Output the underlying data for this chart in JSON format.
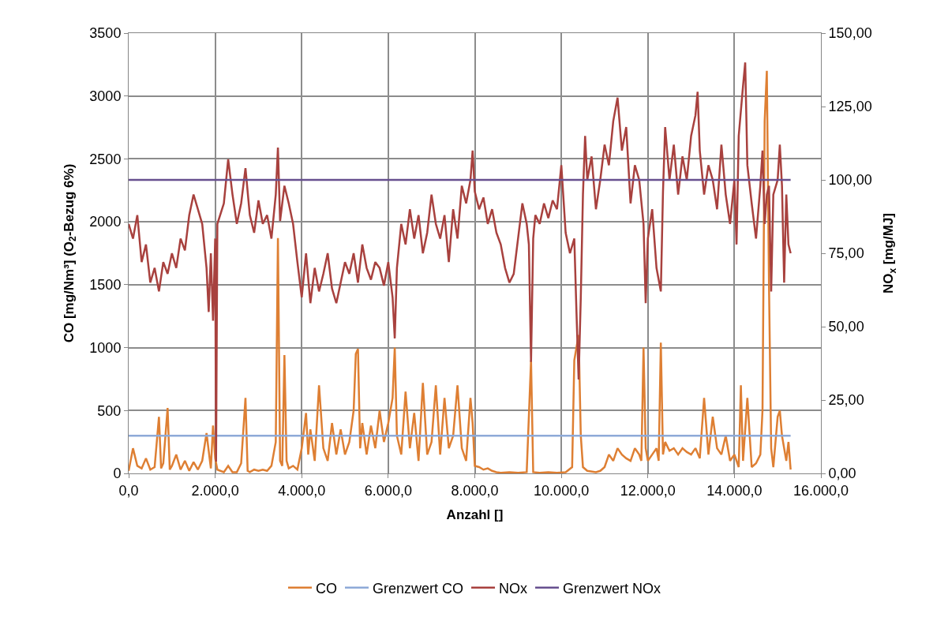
{
  "chart_data": {
    "type": "line",
    "xlabel": "Anzahl []",
    "ylabel": "CO [mg/Nm³] (O$_{2}$-Bezug 6%)",
    "y2label": "NO$_{x}$ [mg/MJ]",
    "xlim": [
      0,
      16000
    ],
    "xticks": [
      {
        "value": 0,
        "label": "0,0"
      },
      {
        "value": 2000,
        "label": "2.000,0"
      },
      {
        "value": 4000,
        "label": "4.000,0"
      },
      {
        "value": 6000,
        "label": "6.000,0"
      },
      {
        "value": 8000,
        "label": "8.000,0"
      },
      {
        "value": 10000,
        "label": "10.000,0"
      },
      {
        "value": 12000,
        "label": "12.000,0"
      },
      {
        "value": 14000,
        "label": "14.000,0"
      },
      {
        "value": 16000,
        "label": "16.000,0"
      }
    ],
    "ylim": [
      0,
      3500
    ],
    "yticks": [
      0,
      500,
      1000,
      1500,
      2000,
      2500,
      3000,
      3500
    ],
    "y2lim": [
      0,
      150
    ],
    "y2ticks": [
      {
        "value": 0,
        "label": "0,00"
      },
      {
        "value": 25,
        "label": "25,00"
      },
      {
        "value": 50,
        "label": "50,00"
      },
      {
        "value": 75,
        "label": "75,00"
      },
      {
        "value": 100,
        "label": "100,00"
      },
      {
        "value": 125,
        "label": "125,00"
      },
      {
        "value": 150,
        "label": "150,00"
      }
    ],
    "grid": true,
    "legend": "bottom",
    "marker": "none",
    "line_style": "solid",
    "series": [
      {
        "name": "CO",
        "color": "#de7f33",
        "x": [
          0,
          100,
          200,
          300,
          400,
          500,
          600,
          700,
          750,
          800,
          900,
          950,
          1000,
          1100,
          1200,
          1300,
          1400,
          1500,
          1600,
          1700,
          1800,
          1900,
          1950,
          2000,
          2050,
          2200,
          2300,
          2400,
          2500,
          2600,
          2700,
          2750,
          2800,
          2900,
          3000,
          3100,
          3200,
          3300,
          3400,
          3450,
          3500,
          3550,
          3600,
          3650,
          3700,
          3800,
          3900,
          4000,
          4100,
          4150,
          4200,
          4300,
          4400,
          4500,
          4600,
          4700,
          4800,
          4900,
          5000,
          5100,
          5200,
          5250,
          5300,
          5350,
          5400,
          5500,
          5600,
          5700,
          5800,
          5900,
          6000,
          6100,
          6150,
          6200,
          6300,
          6400,
          6500,
          6600,
          6700,
          6800,
          6900,
          7000,
          7100,
          7200,
          7300,
          7400,
          7500,
          7600,
          7700,
          7800,
          7900,
          7950,
          8000,
          8100,
          8200,
          8300,
          8400,
          8500,
          8600,
          8800,
          9000,
          9200,
          9300,
          9350,
          9500,
          9700,
          9900,
          10100,
          10250,
          10300,
          10350,
          10400,
          10450,
          10500,
          10600,
          10800,
          10900,
          11000,
          11100,
          11200,
          11300,
          11400,
          11500,
          11600,
          11700,
          11800,
          11850,
          11900,
          11950,
          12000,
          12100,
          12200,
          12250,
          12300,
          12350,
          12400,
          12500,
          12600,
          12700,
          12800,
          12900,
          13000,
          13100,
          13200,
          13300,
          13400,
          13500,
          13600,
          13700,
          13800,
          13900,
          14000,
          14100,
          14150,
          14200,
          14300,
          14400,
          14500,
          14600,
          14650,
          14700,
          14750,
          14800,
          14850,
          14900,
          15000,
          15050,
          15100,
          15150,
          15200,
          15250,
          15300
        ],
        "values": [
          20,
          200,
          60,
          40,
          120,
          30,
          50,
          450,
          40,
          80,
          520,
          30,
          60,
          150,
          30,
          100,
          20,
          90,
          30,
          100,
          320,
          40,
          380,
          120,
          30,
          10,
          60,
          10,
          10,
          80,
          600,
          20,
          10,
          30,
          20,
          30,
          20,
          60,
          250,
          1870,
          100,
          60,
          940,
          100,
          40,
          60,
          30,
          200,
          480,
          150,
          350,
          100,
          700,
          200,
          100,
          400,
          150,
          350,
          150,
          250,
          500,
          950,
          990,
          200,
          400,
          150,
          380,
          200,
          500,
          250,
          400,
          600,
          1000,
          300,
          150,
          650,
          200,
          480,
          100,
          720,
          150,
          250,
          700,
          150,
          600,
          200,
          300,
          700,
          200,
          100,
          600,
          400,
          60,
          50,
          30,
          40,
          20,
          10,
          5,
          10,
          5,
          10,
          900,
          10,
          5,
          10,
          5,
          10,
          50,
          900,
          1000,
          1100,
          300,
          50,
          20,
          10,
          20,
          50,
          150,
          100,
          200,
          150,
          120,
          100,
          200,
          150,
          100,
          1000,
          200,
          100,
          150,
          200,
          100,
          1040,
          150,
          250,
          180,
          200,
          150,
          200,
          170,
          150,
          200,
          120,
          600,
          150,
          450,
          200,
          150,
          300,
          100,
          150,
          50,
          700,
          100,
          600,
          50,
          80,
          150,
          500,
          2800,
          3200,
          1500,
          200,
          50,
          450,
          500,
          300,
          200,
          100,
          250,
          30
        ]
      },
      {
        "name": "Grenzwert CO",
        "color": "#8eaad8",
        "x": [
          0,
          15300
        ],
        "values": [
          300,
          300
        ]
      },
      {
        "name": "NOx",
        "color": "#a8413e",
        "axis": "y2",
        "x": [
          0,
          100,
          200,
          300,
          400,
          500,
          600,
          700,
          800,
          900,
          1000,
          1100,
          1200,
          1300,
          1400,
          1500,
          1600,
          1700,
          1800,
          1850,
          1900,
          1950,
          2000,
          2020,
          2050,
          2200,
          2300,
          2400,
          2500,
          2600,
          2700,
          2800,
          2900,
          3000,
          3100,
          3200,
          3300,
          3400,
          3450,
          3500,
          3600,
          3700,
          3800,
          3900,
          4000,
          4100,
          4200,
          4300,
          4400,
          4500,
          4600,
          4700,
          4800,
          4900,
          5000,
          5100,
          5200,
          5300,
          5400,
          5500,
          5600,
          5700,
          5800,
          5900,
          6000,
          6100,
          6150,
          6200,
          6300,
          6400,
          6500,
          6600,
          6700,
          6800,
          6900,
          7000,
          7100,
          7200,
          7300,
          7400,
          7500,
          7600,
          7700,
          7800,
          7900,
          7950,
          8000,
          8100,
          8200,
          8300,
          8400,
          8500,
          8600,
          8700,
          8800,
          8900,
          9000,
          9100,
          9200,
          9250,
          9300,
          9350,
          9400,
          9500,
          9600,
          9700,
          9800,
          9900,
          10000,
          10100,
          10200,
          10300,
          10350,
          10400,
          10450,
          10500,
          10550,
          10600,
          10700,
          10800,
          10900,
          11000,
          11100,
          11200,
          11300,
          11400,
          11500,
          11600,
          11700,
          11800,
          11900,
          11950,
          12000,
          12100,
          12200,
          12300,
          12350,
          12400,
          12500,
          12600,
          12700,
          12800,
          12900,
          13000,
          13100,
          13150,
          13200,
          13300,
          13400,
          13500,
          13600,
          13700,
          13800,
          13900,
          14000,
          14050,
          14100,
          14200,
          14250,
          14300,
          14400,
          14500,
          14600,
          14650,
          14700,
          14750,
          14800,
          14850,
          14900,
          15000,
          15050,
          15100,
          15150,
          15200,
          15250,
          15300
        ],
        "values": [
          85,
          80,
          88,
          72,
          78,
          65,
          70,
          62,
          72,
          68,
          75,
          70,
          80,
          76,
          88,
          95,
          90,
          85,
          70,
          55,
          75,
          52,
          80,
          4,
          85,
          92,
          107,
          95,
          85,
          92,
          104,
          88,
          82,
          93,
          85,
          88,
          80,
          95,
          111,
          86,
          98,
          92,
          85,
          72,
          60,
          75,
          58,
          70,
          62,
          68,
          75,
          63,
          58,
          65,
          72,
          68,
          75,
          65,
          78,
          70,
          66,
          72,
          70,
          64,
          72,
          60,
          46,
          70,
          85,
          78,
          90,
          80,
          88,
          75,
          82,
          95,
          85,
          80,
          88,
          72,
          90,
          80,
          98,
          92,
          100,
          110,
          96,
          90,
          94,
          85,
          90,
          82,
          78,
          70,
          65,
          68,
          80,
          92,
          85,
          78,
          38,
          80,
          88,
          85,
          92,
          87,
          93,
          90,
          105,
          82,
          75,
          80,
          55,
          32,
          60,
          95,
          115,
          100,
          108,
          90,
          100,
          112,
          105,
          120,
          128,
          110,
          118,
          92,
          105,
          100,
          85,
          58,
          80,
          90,
          70,
          62,
          96,
          118,
          100,
          112,
          95,
          108,
          100,
          115,
          122,
          130,
          110,
          95,
          105,
          100,
          90,
          112,
          95,
          85,
          100,
          78,
          115,
          132,
          140,
          105,
          92,
          80,
          98,
          110,
          85,
          95,
          98,
          62,
          95,
          100,
          112,
          98,
          65,
          95,
          78,
          75
        ]
      },
      {
        "name": "Grenzwert NOx",
        "color": "#67508f",
        "axis": "y2",
        "x": [
          0,
          15300
        ],
        "values": [
          100,
          100
        ]
      }
    ]
  }
}
